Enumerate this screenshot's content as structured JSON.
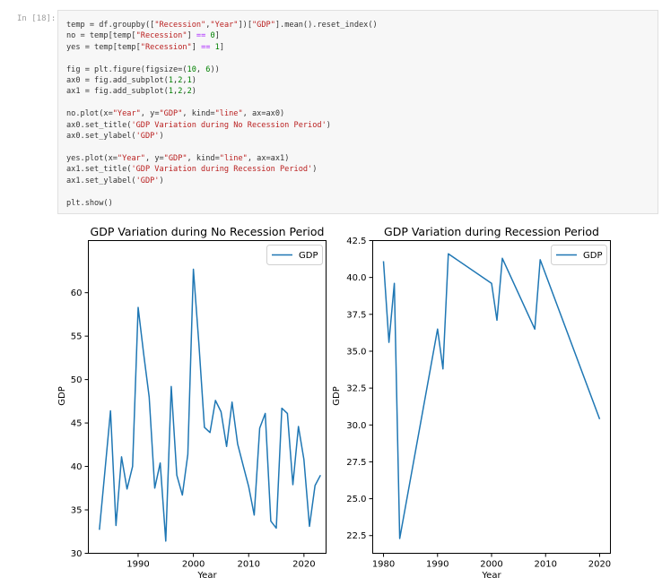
{
  "notebook": {
    "prompt": "In [18]:",
    "code_lines": [
      "temp = df.groupby([\"Recession\",\"Year\"])[\"GDP\"].mean().reset_index()",
      "no = temp[temp[\"Recession\"] == 0]",
      "yes = temp[temp[\"Recession\"] == 1]",
      "",
      "fig = plt.figure(figsize=(10, 6))",
      "ax0 = fig.add_subplot(1,2,1)",
      "ax1 = fig.add_subplot(1,2,2)",
      "",
      "no.plot(x=\"Year\", y=\"GDP\", kind=\"line\", ax=ax0)",
      "ax0.set_title('GDP Variation during No Recession Period')",
      "ax0.set_ylabel('GDP')",
      "",
      "yes.plot(x=\"Year\", y=\"GDP\", kind=\"line\", ax=ax1)",
      "ax1.set_title('GDP Variation during Recession Period')",
      "ax1.set_ylabel('GDP')",
      "",
      "plt.show()"
    ]
  },
  "colors": {
    "line": "#1f77b4"
  },
  "chart_data": [
    {
      "type": "line",
      "title": "GDP Variation during No Recession Period",
      "xlabel": "Year",
      "ylabel": "GDP",
      "legend": "top-right",
      "xlim": [
        1981,
        2024
      ],
      "ylim": [
        30,
        66
      ],
      "xticks": [
        1990,
        2000,
        2010,
        2020
      ],
      "yticks": [
        30,
        35,
        40,
        45,
        50,
        55,
        60
      ],
      "series": [
        {
          "name": "GDP",
          "x": [
            1983,
            1984,
            1985,
            1986,
            1987,
            1988,
            1989,
            1990,
            1991,
            1992,
            1993,
            1994,
            1995,
            1996,
            1997,
            1998,
            1999,
            2000,
            2001,
            2002,
            2003,
            2004,
            2005,
            2006,
            2007,
            2008,
            2009,
            2010,
            2011,
            2012,
            2013,
            2014,
            2015,
            2016,
            2017,
            2018,
            2019,
            2020,
            2021,
            2022,
            2023
          ],
          "y": [
            32.7,
            39.5,
            46.4,
            33.2,
            41.1,
            37.4,
            40.0,
            58.3,
            53.0,
            48.0,
            37.5,
            40.4,
            31.4,
            49.2,
            39.0,
            36.7,
            41.4,
            62.7,
            54.0,
            44.5,
            43.9,
            47.6,
            46.3,
            42.3,
            47.4,
            42.6,
            40.1,
            37.7,
            34.4,
            44.4,
            46.1,
            33.7,
            32.9,
            46.7,
            46.1,
            37.9,
            44.6,
            40.8,
            33.1,
            37.8,
            39.0
          ]
        }
      ]
    },
    {
      "type": "line",
      "title": "GDP Variation during Recession Period",
      "xlabel": "Year",
      "ylabel": "GDP",
      "legend": "top-right",
      "xlim": [
        1978,
        2022
      ],
      "ylim": [
        21.3,
        42.5
      ],
      "xticks": [
        1980,
        1990,
        2000,
        2010,
        2020
      ],
      "yticks": [
        22.5,
        25.0,
        27.5,
        30.0,
        32.5,
        35.0,
        37.5,
        40.0,
        42.5
      ],
      "ytick_labels": [
        "22.5",
        "25.0",
        "27.5",
        "30.0",
        "32.5",
        "35.0",
        "37.5",
        "40.0",
        "42.5"
      ],
      "series": [
        {
          "name": "GDP",
          "x": [
            1980,
            1981,
            1982,
            1983,
            1990,
            1991,
            1992,
            2000,
            2001,
            2002,
            2008,
            2009,
            2020
          ],
          "y": [
            41.1,
            35.6,
            39.6,
            22.3,
            36.5,
            33.8,
            41.6,
            39.6,
            37.1,
            41.3,
            36.5,
            41.2,
            30.4
          ]
        }
      ]
    }
  ]
}
